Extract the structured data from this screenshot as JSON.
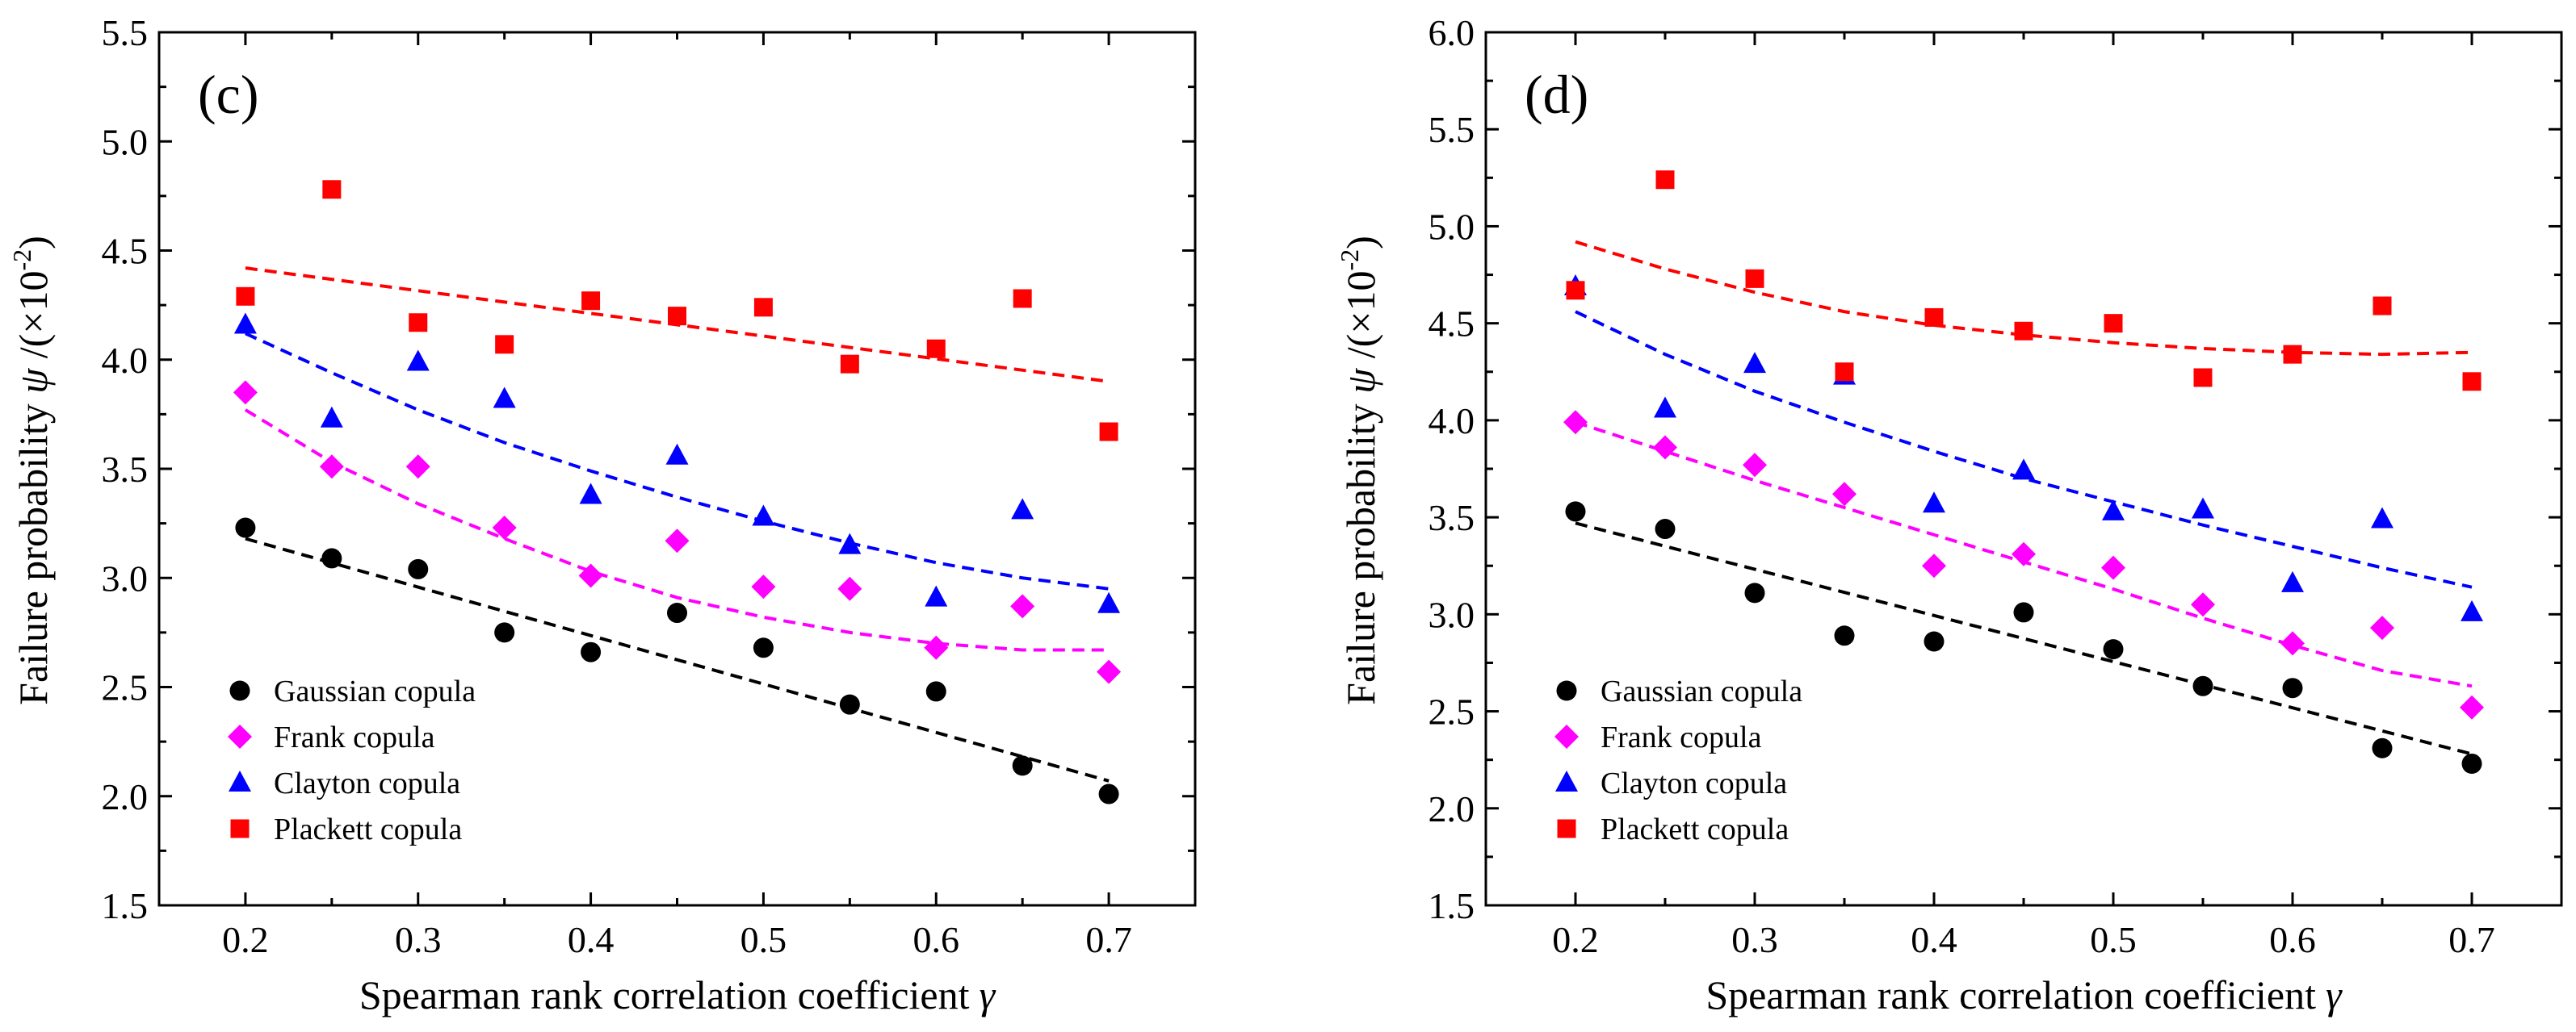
{
  "chart_data": [
    {
      "type": "scatter",
      "panel_label": "(c)",
      "xlabel": "Spearman rank correlation coefficient",
      "xlabel_symbol": "γ",
      "ylabel_prefix": "Failure probability ",
      "ylabel_symbol": "ψ",
      "ylabel_unit_pre": " /(×10",
      "ylabel_exp": "-2",
      "ylabel_unit_post": ")",
      "xlim": [
        0.15,
        0.75
      ],
      "ylim": [
        1.5,
        5.5
      ],
      "xticks": [
        "0.2",
        "0.3",
        "0.4",
        "0.5",
        "0.6",
        "0.7"
      ],
      "yticks": [
        "1.5",
        "2.0",
        "2.5",
        "3.0",
        "3.5",
        "4.0",
        "4.5",
        "5.0",
        "5.5"
      ],
      "legend_position": "bottom-left",
      "x": [
        0.2,
        0.25,
        0.3,
        0.35,
        0.4,
        0.45,
        0.5,
        0.55,
        0.6,
        0.65,
        0.7
      ],
      "series": [
        {
          "name": "Gaussian copula",
          "marker": "circle",
          "color": "#000000",
          "values": [
            3.23,
            3.09,
            3.04,
            2.75,
            2.66,
            2.84,
            2.68,
            2.42,
            2.48,
            2.14,
            2.01
          ],
          "fit": [
            3.18,
            2.07
          ]
        },
        {
          "name": "Frank copula",
          "marker": "diamond",
          "color": "#ff00ff",
          "values": [
            3.85,
            3.51,
            3.51,
            3.23,
            3.01,
            3.17,
            2.96,
            2.95,
            2.68,
            2.87,
            2.57
          ],
          "fit": [
            3.77,
            3.53,
            3.34,
            3.18,
            3.03,
            2.91,
            2.82,
            2.75,
            2.7,
            2.67,
            2.67
          ]
        },
        {
          "name": "Clayton copula",
          "marker": "triangle",
          "color": "#0000ff",
          "values": [
            4.16,
            3.73,
            3.99,
            3.82,
            3.38,
            3.56,
            3.28,
            3.15,
            2.91,
            3.31,
            2.88
          ],
          "fit": [
            4.12,
            3.94,
            3.77,
            3.62,
            3.49,
            3.37,
            3.26,
            3.16,
            3.07,
            3.0,
            2.95
          ]
        },
        {
          "name": "Plackett copula",
          "marker": "square",
          "color": "#ff0000",
          "values": [
            4.29,
            4.78,
            4.17,
            4.07,
            4.27,
            4.2,
            4.24,
            3.98,
            4.05,
            4.28,
            3.67
          ],
          "fit": [
            4.42,
            3.9
          ]
        }
      ]
    },
    {
      "type": "scatter",
      "panel_label": "(d)",
      "xlabel": "Spearman rank correlation coefficient",
      "xlabel_symbol": "γ",
      "ylabel_prefix": "Failure probability ",
      "ylabel_symbol": "ψ",
      "ylabel_unit_pre": " /(×10",
      "ylabel_exp": "-2",
      "ylabel_unit_post": ")",
      "xlim": [
        0.15,
        0.75
      ],
      "ylim": [
        1.5,
        6.0
      ],
      "xticks": [
        "0.2",
        "0.3",
        "0.4",
        "0.5",
        "0.6",
        "0.7"
      ],
      "yticks": [
        "1.5",
        "2.0",
        "2.5",
        "3.0",
        "3.5",
        "4.0",
        "4.5",
        "5.0",
        "5.5",
        "6.0"
      ],
      "legend_position": "bottom-left",
      "x": [
        0.2,
        0.25,
        0.3,
        0.35,
        0.4,
        0.45,
        0.5,
        0.55,
        0.6,
        0.65,
        0.7
      ],
      "series": [
        {
          "name": "Gaussian copula",
          "marker": "circle",
          "color": "#000000",
          "values": [
            3.53,
            3.44,
            3.11,
            2.89,
            2.86,
            3.01,
            2.82,
            2.63,
            2.62,
            2.31,
            2.23
          ],
          "fit": [
            3.47,
            2.28
          ]
        },
        {
          "name": "Frank copula",
          "marker": "diamond",
          "color": "#ff00ff",
          "values": [
            3.99,
            3.86,
            3.77,
            3.62,
            3.25,
            3.31,
            3.24,
            3.05,
            2.85,
            2.93,
            2.52
          ],
          "fit": [
            3.99,
            3.84,
            3.69,
            3.55,
            3.41,
            3.27,
            3.13,
            2.98,
            2.84,
            2.71,
            2.63
          ]
        },
        {
          "name": "Clayton copula",
          "marker": "triangle",
          "color": "#0000ff",
          "values": [
            4.69,
            4.06,
            4.29,
            4.23,
            3.57,
            3.74,
            3.53,
            3.54,
            3.16,
            3.49,
            3.01
          ],
          "fit": [
            4.56,
            4.34,
            4.15,
            3.99,
            3.84,
            3.7,
            3.58,
            3.46,
            3.35,
            3.24,
            3.14
          ]
        },
        {
          "name": "Plackett copula",
          "marker": "square",
          "color": "#ff0000",
          "values": [
            4.67,
            5.24,
            4.73,
            4.25,
            4.53,
            4.46,
            4.5,
            4.22,
            4.34,
            4.59,
            4.2
          ],
          "fit": [
            4.92,
            4.78,
            4.66,
            4.56,
            4.49,
            4.44,
            4.4,
            4.37,
            4.35,
            4.34,
            4.35
          ]
        }
      ]
    }
  ]
}
